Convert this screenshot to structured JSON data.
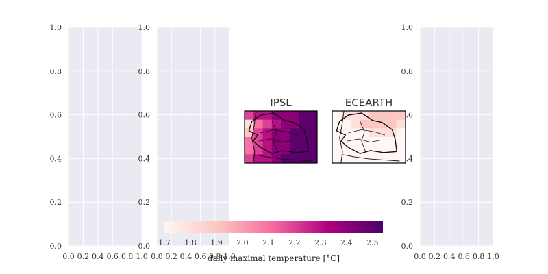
{
  "chart_data": {
    "type": "heatmap",
    "empty_axes": [
      {
        "name": "empty-axes-1",
        "xlim": [
          0,
          1
        ],
        "ylim": [
          0,
          1
        ],
        "xticks": [
          "0.0",
          "0.2",
          "0.4",
          "0.6",
          "0.8",
          "1.0"
        ],
        "yticks": [
          "0.0",
          "0.2",
          "0.4",
          "0.6",
          "0.8",
          "1.0"
        ]
      },
      {
        "name": "empty-axes-2",
        "xlim": [
          0,
          1
        ],
        "ylim": [
          0,
          1
        ],
        "xticks": [
          "0.0",
          "0.2",
          "0.4",
          "0.6",
          "0.8",
          "1.0"
        ],
        "yticks": [
          "0.0",
          "0.2",
          "0.4",
          "0.6",
          "0.8",
          "1.0"
        ]
      },
      {
        "name": "empty-axes-3",
        "xlim": [
          0,
          1
        ],
        "ylim": [
          0,
          1
        ],
        "xticks": [
          "0.0",
          "0.2",
          "0.4",
          "0.6",
          "0.8",
          "1.0"
        ],
        "yticks": [
          "0.0",
          "0.2",
          "0.4",
          "0.6",
          "0.8",
          "1.0"
        ]
      }
    ],
    "maps": [
      {
        "title": "IPSL",
        "grid": [
          [
            2.2,
            2.3,
            2.3,
            2.4,
            2.4,
            2.4,
            2.5,
            2.5
          ],
          [
            1.8,
            2.1,
            2.2,
            2.3,
            2.4,
            2.4,
            2.5,
            2.5
          ],
          [
            1.9,
            2.2,
            2.3,
            2.4,
            2.4,
            2.5,
            2.5,
            2.5
          ],
          [
            2.1,
            2.2,
            2.3,
            2.4,
            2.4,
            2.5,
            2.5,
            2.5
          ],
          [
            2.1,
            2.2,
            2.3,
            2.4,
            2.4,
            2.5,
            2.5,
            2.5
          ],
          [
            2.2,
            2.3,
            2.3,
            2.4,
            2.5,
            2.5,
            2.5,
            2.5
          ]
        ]
      },
      {
        "title": "ECEARTH",
        "grid": [
          [
            1.7,
            1.8,
            1.8,
            1.8,
            1.9,
            1.9,
            1.9,
            1.9
          ],
          [
            1.7,
            1.7,
            1.8,
            1.9,
            1.9,
            1.9,
            1.9,
            1.8
          ],
          [
            1.7,
            1.7,
            1.7,
            1.7,
            1.8,
            1.8,
            1.8,
            1.7
          ],
          [
            1.7,
            1.7,
            1.7,
            1.7,
            1.7,
            1.7,
            1.7,
            1.7
          ],
          [
            1.7,
            1.7,
            1.7,
            1.7,
            1.7,
            1.7,
            1.7,
            1.7
          ],
          [
            1.7,
            1.7,
            1.7,
            1.7,
            1.7,
            1.7,
            1.7,
            1.7
          ]
        ]
      }
    ],
    "colorbar": {
      "range": [
        1.7,
        2.54
      ],
      "ticks": [
        "1.7",
        "1.8",
        "1.9",
        "2.0",
        "2.1",
        "2.2",
        "2.3",
        "2.4",
        "2.5"
      ],
      "label": "daily maximal temperature [°C]",
      "colormap": [
        "#fff7f3",
        "#fcc5c0",
        "#f768a1",
        "#ae017e",
        "#49006a"
      ]
    }
  }
}
